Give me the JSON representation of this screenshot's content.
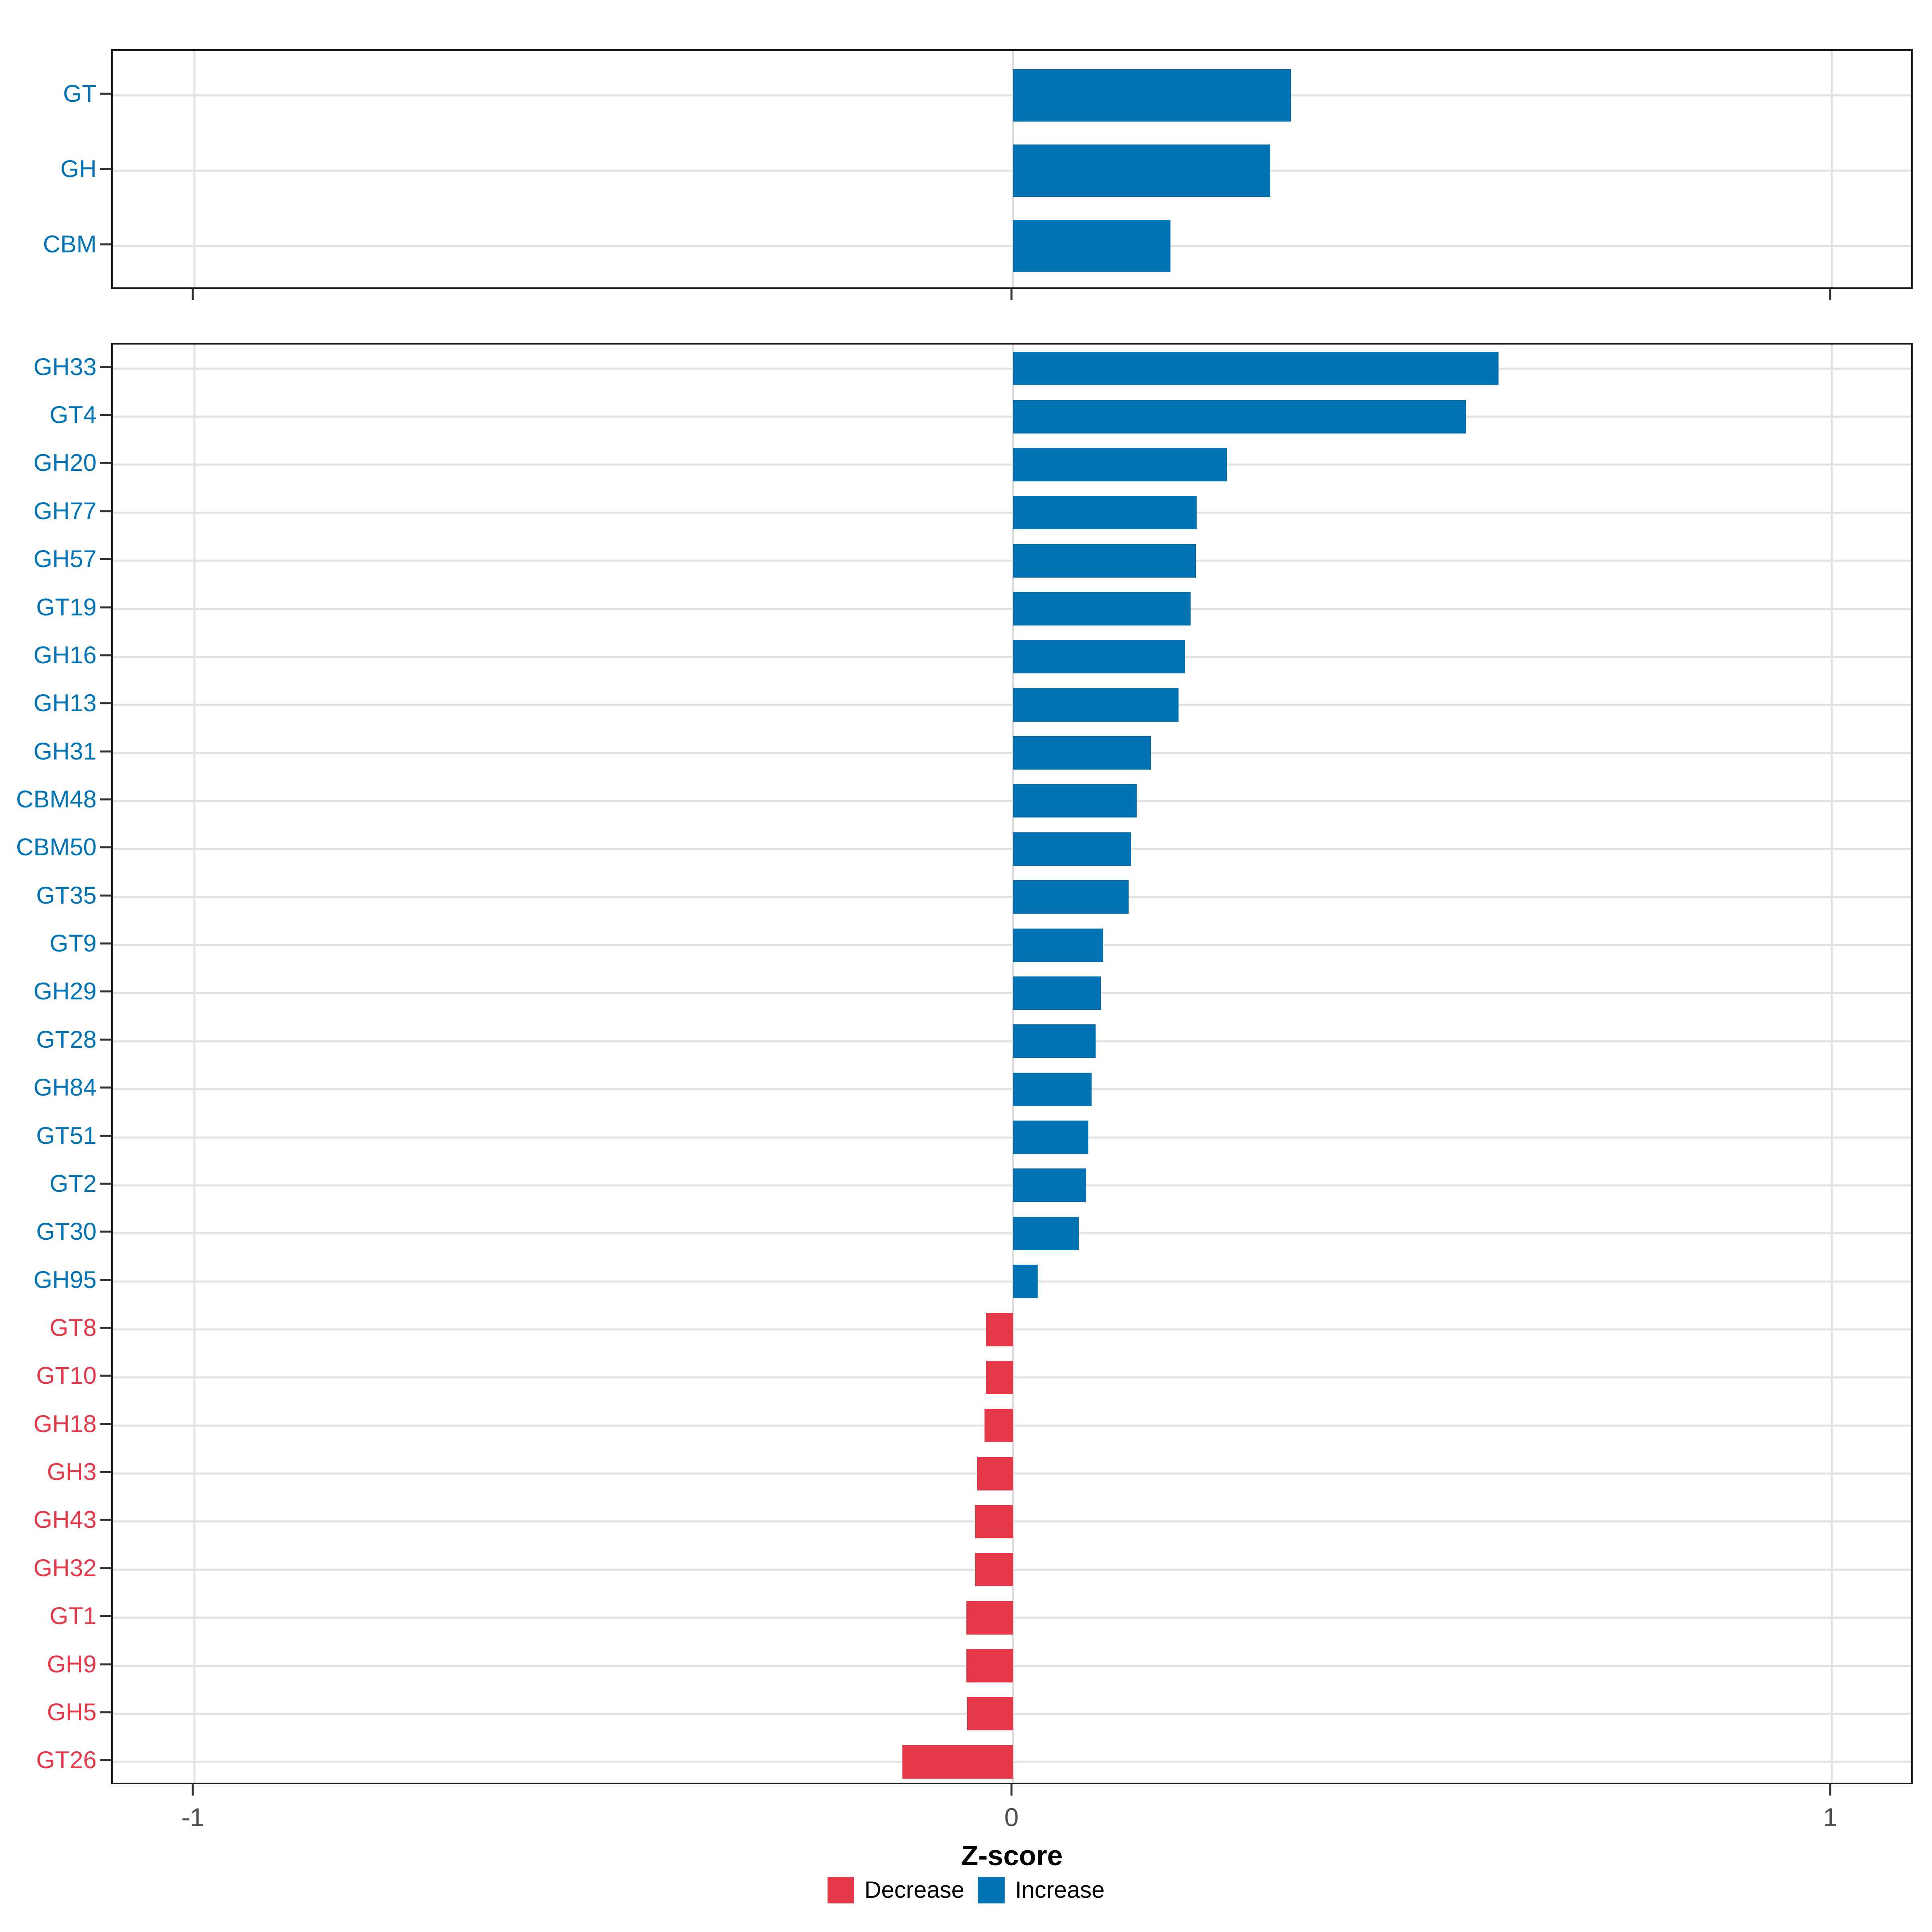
{
  "figure": {
    "xlabel": "Z-score",
    "x_ticks": [
      {
        "label": "-1",
        "value": -1
      },
      {
        "label": "0",
        "value": 0
      },
      {
        "label": "1",
        "value": 1
      }
    ],
    "legend": [
      {
        "label": "Decrease",
        "color": "#E5394A"
      },
      {
        "label": "Increase",
        "color": "#0274B5"
      }
    ],
    "colors": {
      "increase": "#0274B5",
      "decrease": "#E5394A",
      "grid": "#E2E2E2",
      "zero_grid": "#DCDCDC",
      "panel_border": "#1A1A1A",
      "tick": "#333333",
      "tick_text": "#4D4D4D",
      "background": "#FFFFFF"
    }
  },
  "chart_data": [
    {
      "type": "bar",
      "orientation": "horizontal",
      "panel": "top",
      "title": "",
      "xlabel": "Z-score",
      "xlim": [
        -1.1,
        1.1
      ],
      "grid": "major-only",
      "legend_position": "bottom",
      "categories": [
        "GT",
        "GH",
        "CBM"
      ],
      "values": [
        0.339,
        0.314,
        0.192
      ]
    },
    {
      "type": "bar",
      "orientation": "horizontal",
      "panel": "bottom",
      "title": "",
      "xlabel": "Z-score",
      "xlim": [
        -1.1,
        1.1
      ],
      "grid": "major-only",
      "legend_position": "bottom",
      "categories": [
        "GH33",
        "GT4",
        "GH20",
        "GH77",
        "GH57",
        "GT19",
        "GH16",
        "GH13",
        "GH31",
        "CBM48",
        "CBM50",
        "GT35",
        "GT9",
        "GH29",
        "GT28",
        "GH84",
        "GT51",
        "GT2",
        "GT30",
        "GH95",
        "GT8",
        "GT10",
        "GH18",
        "GH3",
        "GH43",
        "GH32",
        "GT1",
        "GH9",
        "GH5",
        "GT26"
      ],
      "values": [
        0.593,
        0.553,
        0.261,
        0.224,
        0.223,
        0.217,
        0.21,
        0.202,
        0.168,
        0.151,
        0.144,
        0.141,
        0.11,
        0.107,
        0.101,
        0.096,
        0.092,
        0.089,
        0.08,
        0.03,
        -0.033,
        -0.033,
        -0.035,
        -0.044,
        -0.046,
        -0.046,
        -0.057,
        -0.057,
        -0.056,
        -0.135
      ]
    }
  ]
}
